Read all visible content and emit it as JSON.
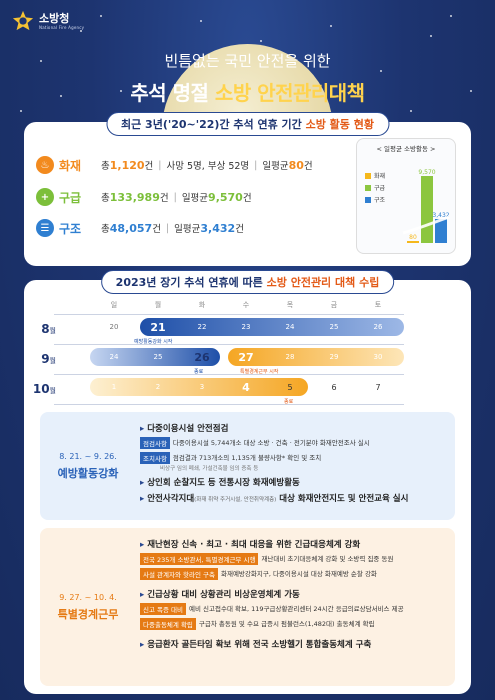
{
  "brand": {
    "name": "소방청",
    "sub": "National Fire Agency"
  },
  "headline": {
    "sub": "빈틈없는 국민 안전을 위한",
    "main_prefix": "추석 명절 ",
    "main_highlight": "소방 안전관리대책"
  },
  "card1": {
    "title_prefix": "최근 3년('20~'22)간 추석 연휴 기간 ",
    "title_highlight": "소방 활동 현황",
    "rows": [
      {
        "label": "화재",
        "color": "#f28a1e",
        "icon": "fire-icon",
        "glyph": "♨",
        "t1": "총 ",
        "n1": "1,120",
        "u1": "건",
        "t2": "사망 5명, 부상 52명",
        "t3": "일평균 ",
        "n3": "80",
        "u3": "건"
      },
      {
        "label": "구급",
        "color": "#7cbf3a",
        "icon": "plus-icon",
        "glyph": "+",
        "t1": "총 ",
        "n1": "133,989",
        "u1": "건",
        "t3": "일평균 ",
        "n3": "9,570",
        "u3": "건"
      },
      {
        "label": "구조",
        "color": "#2f7fd1",
        "icon": "siren-icon",
        "glyph": "☰",
        "t1": "총 ",
        "n1": "48,057",
        "u1": "건",
        "t3": "일평균 ",
        "n3": "3,432",
        "u3": "건"
      }
    ]
  },
  "chart_data": {
    "type": "bar",
    "title": "< 일평균 소방활동 >",
    "categories": [
      "화재",
      "구급",
      "구조"
    ],
    "values": [
      80,
      9570,
      3432
    ],
    "value_labels": [
      "80",
      "9,570",
      "3,432"
    ],
    "colors": [
      "#f5b81c",
      "#8cc63f",
      "#2f7fd1"
    ]
  },
  "card2": {
    "title_prefix": "2023년 장기 추석 연휴에 따른 ",
    "title_highlight": "소방 안전관리 대책 수립",
    "weekdays": [
      "일",
      "월",
      "화",
      "수",
      "목",
      "금",
      "토"
    ],
    "months": [
      {
        "label": "8",
        "unit": "월",
        "days": [
          "20",
          "21",
          "22",
          "23",
          "24",
          "25",
          "26"
        ]
      },
      {
        "label": "9",
        "unit": "월",
        "days": [
          "24",
          "25",
          "26",
          "27",
          "28",
          "29",
          "30"
        ]
      },
      {
        "label": "10",
        "unit": "월",
        "days": [
          "1",
          "2",
          "3",
          "4",
          "5",
          "6",
          "7"
        ]
      }
    ],
    "notes": {
      "n1": "예방활동강화 시작",
      "n2": "종료",
      "n3": "특별경계근무 시작",
      "n4": "종료"
    }
  },
  "sections": [
    {
      "date": "8. 21. ~ 9. 26.",
      "name": "예방활동강화",
      "bg": "#e7f0fb",
      "accent": "#2a62b8",
      "b1": "다중이용시설 안전점검",
      "tag1": "점검사항",
      "t1": "다중이용시설 5,744개소 대상 소방 · 건축 · 전기분야 화재안전조사 실시",
      "tag2": "조치사항",
      "t2": "점검결과 713개소의 1,135개 불량사항* 확인 및 조치",
      "t2b": "비상구 임의 폐쇄, 가설건축물 임의 증축 등",
      "b2": "상인회 순찰지도 등 전통시장 화재예방활동",
      "b3": "안전사각지대",
      "b3s": "(화재 취약 주거시설, 안전취약계층)",
      "b3e": " 대상 화재안전지도 및 안전교육 실시"
    },
    {
      "date": "9. 27. ~ 10. 4.",
      "name": "특별경계근무",
      "bg": "#fdf1e3",
      "accent": "#e57a14",
      "b1": "재난현장 신속 · 최고 · 최대 대응을 위한 긴급대응체계 강화",
      "tag1": "전국 235개 소방관서, 특별경계근무 시행",
      "t1": "재난대비 초기대응체계 강화 및 소방력 집중 동원",
      "tag2": "사설 관계자와 핫라인 구축",
      "t2": "화재예방강화지구, 다중이용시설 대상 화재예방 순찰 강화",
      "b2": "긴급상황 대비 상황관리 비상운영체계 가동",
      "tag3": "신고 폭증 대비",
      "t3": "예비 신고접수대 확보, 119구급상황관리센터 24시간 응급의료상담서비스 제공",
      "tag4": "다중출동체계 확립",
      "t4": "구급차 총동원 및 수요 급증시 펌뷸런스(1,482대) 출동체계 확립",
      "b3": "응급환자 골든타임 확보 위해 전국 소방헬기 통합출동체계 구축"
    }
  ]
}
